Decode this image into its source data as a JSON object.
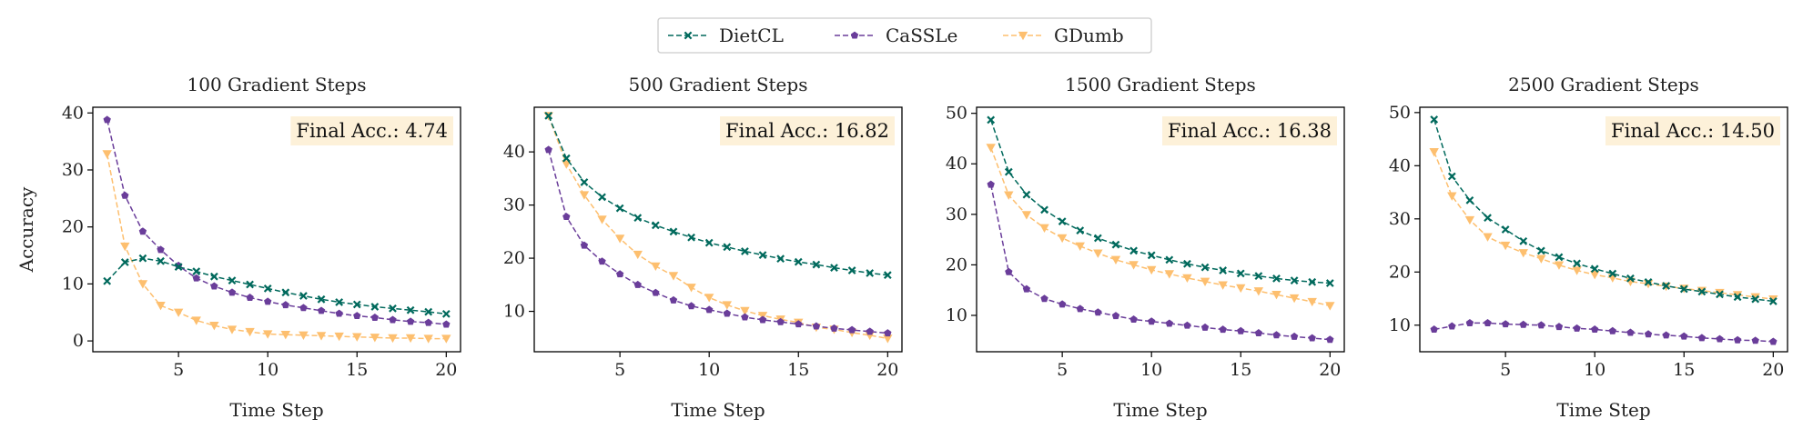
{
  "legend": [
    {
      "name": "DietCL",
      "color": "#00695c",
      "marker": "x"
    },
    {
      "name": "CaSSLe",
      "color": "#6a3d9a",
      "marker": "pentagon"
    },
    {
      "name": "GDumb",
      "color": "#fdbf6f",
      "marker": "triangle-down"
    }
  ],
  "annotation_bg": "#fdf1d9",
  "chart_data": [
    {
      "type": "line",
      "title": "100 Gradient Steps",
      "xlabel": "Time Step",
      "ylabel": "Accuracy",
      "xlim": [
        0.2,
        20.8
      ],
      "ylim": [
        -1.9,
        41
      ],
      "xticks": [
        5,
        10,
        15,
        20
      ],
      "yticks": [
        0,
        10,
        20,
        30,
        40
      ],
      "annotation": "Final Acc.:  4.74",
      "x": [
        1,
        2,
        3,
        4,
        5,
        6,
        7,
        8,
        9,
        10,
        11,
        12,
        13,
        14,
        15,
        16,
        17,
        18,
        19,
        20
      ],
      "series": [
        {
          "name": "DietCL",
          "values": [
            10.5,
            13.8,
            14.5,
            14.0,
            13.0,
            12.2,
            11.3,
            10.6,
            9.9,
            9.2,
            8.5,
            7.9,
            7.3,
            6.8,
            6.4,
            6.0,
            5.7,
            5.4,
            5.1,
            4.74
          ]
        },
        {
          "name": "CaSSLe",
          "values": [
            38.8,
            25.5,
            19.2,
            16.0,
            13.2,
            11.0,
            9.6,
            8.5,
            7.6,
            6.9,
            6.3,
            5.8,
            5.3,
            4.8,
            4.4,
            4.1,
            3.7,
            3.4,
            3.2,
            2.9
          ]
        },
        {
          "name": "GDumb",
          "values": [
            32.8,
            16.6,
            10.0,
            6.2,
            5.0,
            3.6,
            2.7,
            2.0,
            1.6,
            1.2,
            1.1,
            1.0,
            0.9,
            0.8,
            0.7,
            0.6,
            0.5,
            0.5,
            0.4,
            0.4
          ]
        }
      ]
    },
    {
      "type": "line",
      "title": "500 Gradient Steps",
      "xlabel": "Time Step",
      "ylabel": "",
      "xlim": [
        0.2,
        20.8
      ],
      "ylim": [
        2.4,
        48.4
      ],
      "xticks": [
        5,
        10,
        15,
        20
      ],
      "yticks": [
        10,
        20,
        30,
        40
      ],
      "annotation": "Final Acc.:  16.82",
      "x": [
        1,
        2,
        3,
        4,
        5,
        6,
        7,
        8,
        9,
        10,
        11,
        12,
        13,
        14,
        15,
        16,
        17,
        18,
        19,
        20
      ],
      "series": [
        {
          "name": "DietCL",
          "values": [
            46.8,
            38.8,
            34.3,
            31.5,
            29.4,
            27.6,
            26.2,
            25.0,
            23.9,
            22.9,
            22.1,
            21.3,
            20.6,
            19.9,
            19.3,
            18.8,
            18.2,
            17.7,
            17.2,
            16.82
          ]
        },
        {
          "name": "CaSSLe",
          "values": [
            40.4,
            27.8,
            22.4,
            19.4,
            17.0,
            15.0,
            13.5,
            12.1,
            11.0,
            10.3,
            9.6,
            8.9,
            8.4,
            8.0,
            7.6,
            7.2,
            6.8,
            6.5,
            6.2,
            5.9
          ]
        },
        {
          "name": "GDumb",
          "values": [
            46.8,
            37.7,
            31.9,
            27.3,
            23.7,
            20.7,
            18.5,
            16.7,
            14.5,
            12.6,
            11.2,
            10.1,
            9.2,
            8.5,
            7.9,
            7.0,
            6.6,
            6.0,
            5.5,
            4.9
          ]
        }
      ]
    },
    {
      "type": "line",
      "title": "1500 Gradient Steps",
      "xlabel": "Time Step",
      "ylabel": "",
      "xlim": [
        0.2,
        20.8
      ],
      "ylim": [
        2.8,
        51.2
      ],
      "xticks": [
        5,
        10,
        15,
        20
      ],
      "yticks": [
        10,
        20,
        30,
        40,
        50
      ],
      "annotation": "Final Acc.:  16.38",
      "x": [
        1,
        2,
        3,
        4,
        5,
        6,
        7,
        8,
        9,
        10,
        11,
        12,
        13,
        14,
        15,
        16,
        17,
        18,
        19,
        20
      ],
      "series": [
        {
          "name": "DietCL",
          "values": [
            48.7,
            38.4,
            33.9,
            30.9,
            28.6,
            26.8,
            25.3,
            24.0,
            22.8,
            21.9,
            21.0,
            20.2,
            19.5,
            18.9,
            18.3,
            17.8,
            17.3,
            16.9,
            16.6,
            16.38
          ]
        },
        {
          "name": "CaSSLe",
          "values": [
            35.9,
            18.6,
            15.2,
            13.3,
            12.2,
            11.3,
            10.6,
            9.9,
            9.2,
            8.8,
            8.4,
            8.0,
            7.6,
            7.2,
            6.9,
            6.5,
            6.1,
            5.8,
            5.5,
            5.2
          ]
        },
        {
          "name": "GDumb",
          "values": [
            43.2,
            33.8,
            29.9,
            27.3,
            25.3,
            23.7,
            22.3,
            21.0,
            20.0,
            19.0,
            18.2,
            17.4,
            16.7,
            16.0,
            15.4,
            14.8,
            14.1,
            13.4,
            12.7,
            11.9
          ]
        }
      ]
    },
    {
      "type": "line",
      "title": "2500 Gradient Steps",
      "xlabel": "Time Step",
      "ylabel": "",
      "xlim": [
        0.2,
        20.8
      ],
      "ylim": [
        5,
        51
      ],
      "xticks": [
        5,
        10,
        15,
        20
      ],
      "yticks": [
        10,
        20,
        30,
        40,
        50
      ],
      "annotation": "Final Acc.:  14.50",
      "x": [
        1,
        2,
        3,
        4,
        5,
        6,
        7,
        8,
        9,
        10,
        11,
        12,
        13,
        14,
        15,
        16,
        17,
        18,
        19,
        20
      ],
      "series": [
        {
          "name": "DietCL",
          "values": [
            48.7,
            38.0,
            33.5,
            30.2,
            28.0,
            25.8,
            24.0,
            22.8,
            21.6,
            20.6,
            19.7,
            18.8,
            18.1,
            17.4,
            16.8,
            16.3,
            15.8,
            15.3,
            14.9,
            14.5
          ]
        },
        {
          "name": "CaSSLe",
          "values": [
            9.2,
            9.8,
            10.4,
            10.4,
            10.2,
            10.1,
            10.0,
            9.7,
            9.4,
            9.2,
            8.9,
            8.6,
            8.3,
            8.1,
            7.9,
            7.6,
            7.4,
            7.2,
            7.1,
            6.9
          ]
        },
        {
          "name": "GDumb",
          "values": [
            42.6,
            34.3,
            29.8,
            26.6,
            25.0,
            23.6,
            22.5,
            21.3,
            20.3,
            19.5,
            18.9,
            18.2,
            17.8,
            17.3,
            16.9,
            16.5,
            16.1,
            15.7,
            15.3,
            14.9
          ]
        }
      ]
    }
  ]
}
